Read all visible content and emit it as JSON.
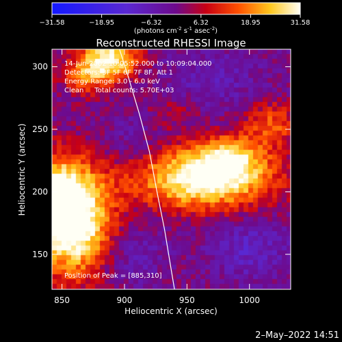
{
  "chart_data": {
    "type": "heatmap",
    "title": "Reconstructed RHESSI Image",
    "xlabel": "Heliocentric X (arcsec)",
    "ylabel": "Heliocentric Y (arcsec)",
    "xlim": [
      842,
      1033
    ],
    "ylim": [
      122,
      314
    ],
    "xticks": [
      850,
      900,
      950,
      1000
    ],
    "yticks": [
      150,
      200,
      250,
      300
    ],
    "colorbar": {
      "label_parts": [
        "(photons cm",
        "-2",
        " s",
        "-1",
        " asec",
        "-2",
        ")"
      ],
      "min": -31.58,
      "max": 31.58,
      "ticks": [
        "−31.58",
        "−18.95",
        "−6.32",
        "6.32",
        "18.95",
        "31.58"
      ],
      "tick_values": [
        -31.58,
        -18.95,
        -6.32,
        6.32,
        18.95,
        31.58
      ]
    },
    "annotations": [
      "14-Jun-2002 10:05:52.000 to 10:09:04.000",
      "Detectors: 3F 5F 6F 7F 8F, Att 1",
      "Energy Range: 3.0 - 6.0 keV",
      "Clean     Total counts: 5.70E+03"
    ],
    "peak_label": "Position of Peak = [885,310]",
    "limb_curve": [
      [
        896,
        314
      ],
      [
        903,
        292
      ],
      [
        912,
        262
      ],
      [
        920,
        232
      ],
      [
        926,
        200
      ],
      [
        932,
        170
      ],
      [
        937,
        140
      ],
      [
        940,
        122
      ]
    ],
    "sources": [
      {
        "x": 858,
        "y": 177,
        "sx": 22,
        "sy": 30,
        "amp": 40
      },
      {
        "x": 845,
        "y": 200,
        "sx": 14,
        "sy": 20,
        "amp": 18
      },
      {
        "x": 888,
        "y": 306,
        "sx": 16,
        "sy": 12,
        "amp": 32
      },
      {
        "x": 868,
        "y": 292,
        "sx": 14,
        "sy": 10,
        "amp": 14
      },
      {
        "x": 963,
        "y": 210,
        "sx": 38,
        "sy": 17,
        "amp": 34
      },
      {
        "x": 985,
        "y": 228,
        "sx": 20,
        "sy": 13,
        "amp": 18
      },
      {
        "x": 1018,
        "y": 255,
        "sx": 15,
        "sy": 12,
        "amp": 15
      },
      {
        "x": 940,
        "y": 265,
        "sx": 14,
        "sy": 10,
        "amp": 6
      },
      {
        "x": 1000,
        "y": 155,
        "sx": 22,
        "sy": 18,
        "amp": -9
      },
      {
        "x": 905,
        "y": 150,
        "sx": 18,
        "sy": 18,
        "amp": -7
      },
      {
        "x": 970,
        "y": 290,
        "sx": 30,
        "sy": 18,
        "amp": -6
      },
      {
        "x": 905,
        "y": 240,
        "sx": 14,
        "sy": 14,
        "amp": -5
      }
    ]
  },
  "footer_date": "2–May–2022 14:51"
}
